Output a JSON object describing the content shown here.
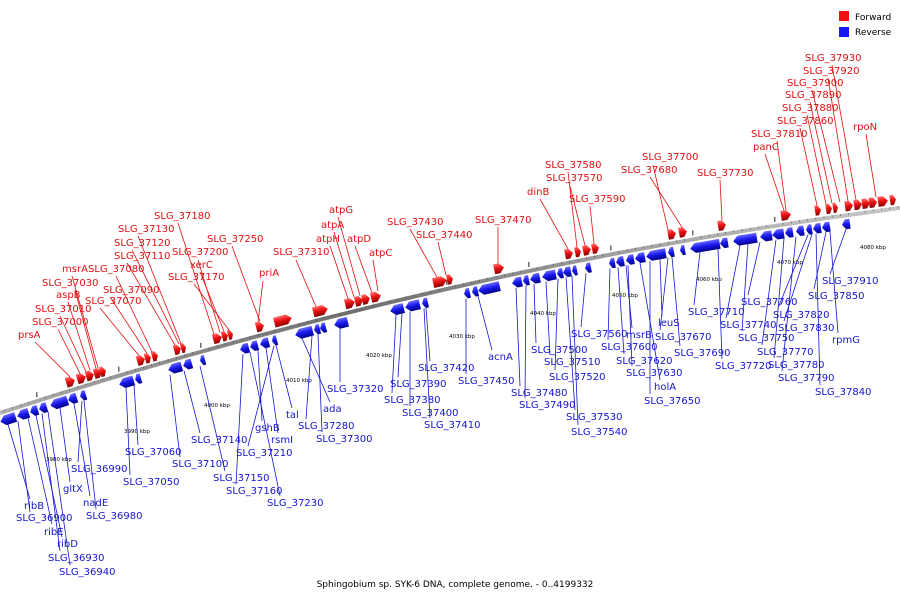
{
  "legend": {
    "forward": {
      "label": "Forward",
      "color": "#ee1111"
    },
    "reverse": {
      "label": "Reverse",
      "color": "#1a1af0"
    }
  },
  "caption": "Sphingobium sp. SYK-6 DNA, complete genome. - 0..4199332",
  "scale_labels": [
    "3980 kbp",
    "3990 kbp",
    "4000 kbp",
    "4010 kbp",
    "4020 kbp",
    "4030 kbp",
    "4040 kbp",
    "4050 kbp",
    "4060 kbp",
    "4070 kbp",
    "4080 kbp"
  ],
  "forward_labels": [
    "prsA",
    "SLG_37000",
    "SLG_37010",
    "aspB",
    "SLG_37030",
    "msrA",
    "SLG_37080",
    "SLG_37070",
    "SLG_37090",
    "SLG_37110",
    "SLG_37120",
    "SLG_37130",
    "SLG_37180",
    "SLG_37200",
    "xerC",
    "SLG_37170",
    "SLG_37250",
    "priA",
    "SLG_37310",
    "atpH",
    "atpA",
    "atpG",
    "atpD",
    "atpC",
    "SLG_37430",
    "SLG_37440",
    "SLG_37470",
    "dinB",
    "SLG_37580",
    "SLG_37570",
    "SLG_37590",
    "SLG_37700",
    "SLG_37680",
    "SLG_37730",
    "panC",
    "SLG_37810",
    "SLG_37860",
    "SLG_37880",
    "SLG_37890",
    "SLG_37900",
    "SLG_37920",
    "SLG_37930",
    "rpoN"
  ],
  "reverse_labels": [
    "ribB",
    "SLG_36900",
    "ribE",
    "ribD",
    "SLG_36930",
    "SLG_36940",
    "gltX",
    "nadE",
    "SLG_36980",
    "SLG_36990",
    "SLG_37050",
    "SLG_37060",
    "SLG_37100",
    "SLG_37140",
    "SLG_37150",
    "SLG_37160",
    "SLG_37230",
    "gshB",
    "rsmI",
    "SLG_37210",
    "tal",
    "ada",
    "SLG_37280",
    "SLG_37300",
    "SLG_37320",
    "SLG_37380",
    "SLG_37390",
    "SLG_37400",
    "SLG_37410",
    "SLG_37420",
    "SLG_37450",
    "acnA",
    "SLG_37480",
    "SLG_37490",
    "SLG_37500",
    "SLG_37510",
    "SLG_37520",
    "SLG_37530",
    "SLG_37540",
    "SLG_37560",
    "SLG_37600",
    "SLG_37620",
    "SLG_37630",
    "holA",
    "SLG_37650",
    "msrB",
    "leuS",
    "SLG_37670",
    "SLG_37690",
    "SLG_37710",
    "SLG_37720",
    "SLG_37740",
    "SLG_37750",
    "SLG_37760",
    "SLG_37770",
    "SLG_37780",
    "SLG_37790",
    "SLG_37820",
    "SLG_37830",
    "SLG_37840",
    "SLG_37850",
    "rpmG",
    "SLG_37910"
  ]
}
